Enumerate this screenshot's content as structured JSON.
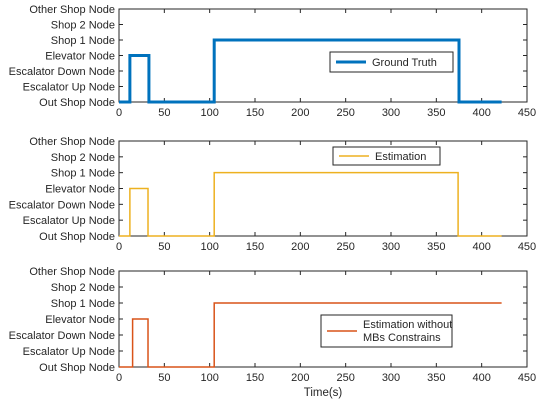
{
  "chart_data": [
    {
      "type": "line",
      "y_categories": [
        "Out Shop Node",
        "Escalator Up Node",
        "Escalator Down Node",
        "Elevator Node",
        "Shop 1 Node",
        "Shop 2 Node",
        "Other Shop Node"
      ],
      "xlim": [
        0,
        450
      ],
      "xticks": [
        0,
        50,
        100,
        150,
        200,
        250,
        300,
        350,
        400,
        450
      ],
      "xlabel": "",
      "grid": false,
      "legend_position": "right",
      "series": [
        {
          "name": "Ground Truth",
          "color": "#0072BD",
          "line_width": "thick",
          "x": [
            0,
            12,
            12,
            33,
            33,
            105,
            105,
            375,
            375,
            422
          ],
          "y": [
            "Out Shop Node",
            "Out Shop Node",
            "Elevator Node",
            "Elevator Node",
            "Out Shop Node",
            "Out Shop Node",
            "Shop 1 Node",
            "Shop 1 Node",
            "Out Shop Node",
            "Out Shop Node"
          ]
        }
      ]
    },
    {
      "type": "line",
      "y_categories": [
        "Out Shop Node",
        "Escalator Up Node",
        "Escalator Down Node",
        "Elevator Node",
        "Shop 1 Node",
        "Shop 2 Node",
        "Other Shop Node"
      ],
      "xlim": [
        0,
        450
      ],
      "xticks": [
        0,
        50,
        100,
        150,
        200,
        250,
        300,
        350,
        400,
        450
      ],
      "xlabel": "",
      "grid": false,
      "legend_position": "top-right",
      "series": [
        {
          "name": "Estimation",
          "color": "#EDB120",
          "line_width": "thin",
          "x": [
            0,
            12,
            12,
            32,
            32,
            105,
            105,
            374,
            374,
            422
          ],
          "y": [
            "Out Shop Node",
            "Out Shop Node",
            "Elevator Node",
            "Elevator Node",
            "Out Shop Node",
            "Out Shop Node",
            "Shop 1 Node",
            "Shop 1 Node",
            "Out Shop Node",
            "Out Shop Node"
          ]
        }
      ]
    },
    {
      "type": "line",
      "y_categories": [
        "Out Shop Node",
        "Escalator Up Node",
        "Escalator Down Node",
        "Elevator Node",
        "Shop 1 Node",
        "Shop 2 Node",
        "Other Shop Node"
      ],
      "xlim": [
        0,
        450
      ],
      "xticks": [
        0,
        50,
        100,
        150,
        200,
        250,
        300,
        350,
        400,
        450
      ],
      "xlabel": "Time(s)",
      "grid": false,
      "legend_position": "right",
      "series": [
        {
          "name": "Estimation without MBs Constrains",
          "legend_lines": [
            "Estimation without",
            "MBs Constrains"
          ],
          "color": "#D95319",
          "line_width": "thin",
          "x": [
            0,
            15,
            15,
            32,
            32,
            105,
            105,
            422
          ],
          "y": [
            "Out Shop Node",
            "Out Shop Node",
            "Elevator Node",
            "Elevator Node",
            "Out Shop Node",
            "Out Shop Node",
            "Shop 1 Node",
            "Shop 1 Node"
          ]
        }
      ]
    }
  ]
}
